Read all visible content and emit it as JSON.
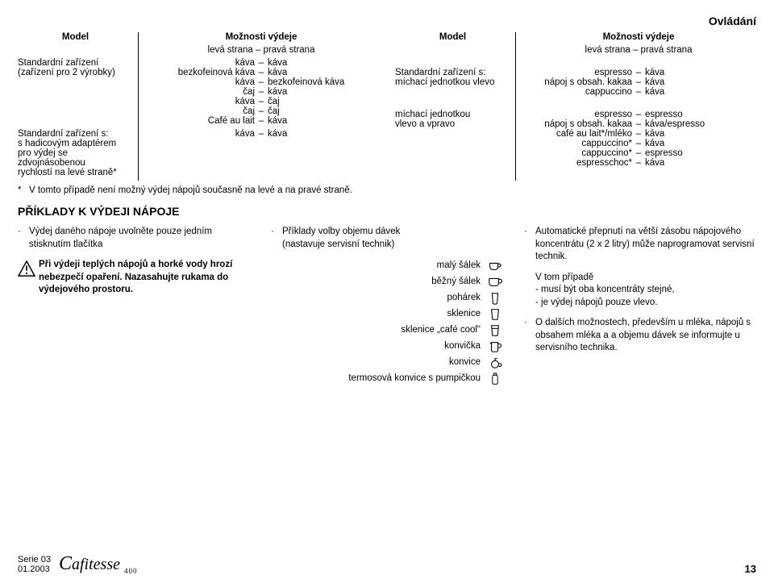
{
  "page_header": "Ovládání",
  "left_table": {
    "header_model": "Model",
    "header_opts_line1": "Možnosti výdeje",
    "header_opts_line2": "levá strana – pravá strana",
    "rows": [
      {
        "model_lines": [
          "Standardní zařízení",
          "(zařízení pro 2 výrobky)"
        ],
        "pairs": [
          [
            "káva",
            "káva"
          ],
          [
            "bezkofeinová káva",
            "káva"
          ],
          [
            "káva",
            "bezkofeinová káva"
          ],
          [
            "čaj",
            "káva"
          ],
          [
            "káva",
            "čaj"
          ],
          [
            "čaj",
            "čaj"
          ],
          [
            "Café au lait",
            "káva"
          ]
        ]
      },
      {
        "model_lines": [
          "Standardní zařízení s:",
          "s hadicovým adaptérem",
          "pro výdej se zdvojnásobenou",
          "rychlostí na levé straně*"
        ],
        "pairs": [
          [
            "",
            ""
          ],
          [
            "",
            ""
          ],
          [
            "",
            ""
          ],
          [
            "káva",
            "káva"
          ]
        ]
      }
    ]
  },
  "right_table": {
    "header_model": "Model",
    "header_opts_line1": "Možnosti výdeje",
    "header_opts_line2": "levá strana – pravá strana",
    "rows": [
      {
        "model_lines": [
          "Standardní zařízení s:",
          "míchací jednotkou vlevo"
        ],
        "pairs": [
          [
            "",
            ""
          ],
          [
            "espresso",
            "káva"
          ],
          [
            "nápoj s obsah. kakaa",
            "káva"
          ],
          [
            "cappuccino",
            "káva"
          ]
        ]
      },
      {
        "model_lines": [
          "míchací jednotkou",
          "vlevo a vpravo"
        ],
        "pairs": [
          [
            "espresso",
            "espresso"
          ],
          [
            "nápoj s obsah. kakaa",
            "káva/espresso"
          ],
          [
            "café au lait*/mléko",
            "káva"
          ],
          [
            "cappuccino*",
            "káva"
          ],
          [
            "cappuccino*",
            "espresso"
          ],
          [
            "espresschoc*",
            "káva"
          ]
        ]
      }
    ]
  },
  "footnote_star": "*",
  "footnote_text": "V tomto případě není možný výdej nápojů současně na levé a na pravé straně.",
  "section_title": "PŘÍKLADY K VÝDEJI NÁPOJE",
  "bcol1": {
    "dot": "·",
    "para1": "Výdej daného nápoje uvolněte pouze jedním stisknutím tlačítka",
    "warning": "Při výdeji teplých nápojů a horké vody hrozí nebezpečí opaření. Nazasahujte rukama do výdejového prostoru."
  },
  "bcol2": {
    "dot": "·",
    "intro_line1": "Příklady volby objemu dávek",
    "intro_line2": "(nastavuje servisní technik)",
    "doses": [
      {
        "label": "malý šálek",
        "icon": "cup1"
      },
      {
        "label": "běžný šálek",
        "icon": "cup2"
      },
      {
        "label": "pohárek",
        "icon": "beaker"
      },
      {
        "label": "sklenice",
        "icon": "glass"
      },
      {
        "label": "sklenice „café cool\"",
        "icon": "glass2"
      },
      {
        "label": "konvička",
        "icon": "jug"
      },
      {
        "label": "konvice",
        "icon": "pot"
      },
      {
        "label": "termosová konvice s pumpičkou",
        "icon": "thermos"
      }
    ]
  },
  "bcol3": {
    "dot": "·",
    "items": [
      "Automatické přepnutí na větší zásobu nápojového koncentrátu (2 x 2 litry) může naprogramovat servisní technik.",
      "V tom případě\n- musí být oba koncentráty stejné,\n- je výdej nápojů pouze vlevo.",
      "O dalších možnostech, především u mléka, nápojů s obsahem mléka a a objemu dávek se informujte u servisního technika."
    ]
  },
  "footer": {
    "serie": "Serie 03",
    "date": "01.2003",
    "logo_main": "afitesse",
    "logo_sub": "400",
    "page": "13"
  },
  "colors": {
    "text": "#000000",
    "bg": "#ffffff",
    "rule": "#000000"
  }
}
